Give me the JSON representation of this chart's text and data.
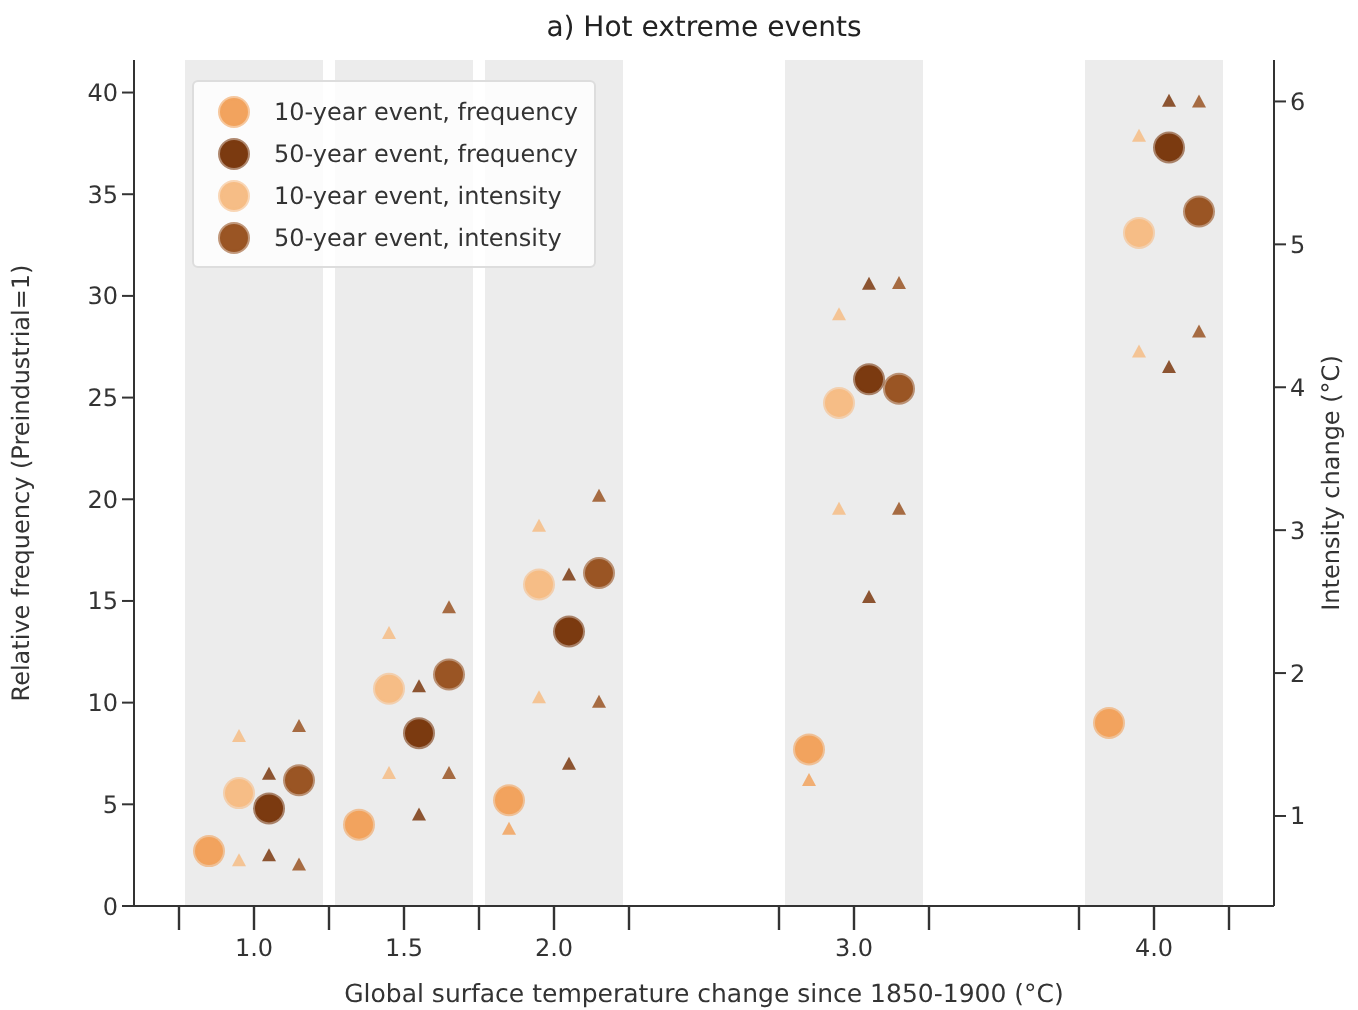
{
  "chart_data": {
    "type": "scatter",
    "title": "a) Hot extreme events",
    "xlabel": "Global surface temperature change since 1850-1900 (°C)",
    "ylabel": "Relative frequency (Preindustrial=1)",
    "y2label": "Intensity change (°C)",
    "xlim": [
      0.6,
      4.4
    ],
    "xticks": [
      {
        "value": 0.75,
        "label": null
      },
      {
        "value": 1,
        "label": "1.0"
      },
      {
        "value": 1.25,
        "label": null
      },
      {
        "value": 1.5,
        "label": "1.5"
      },
      {
        "value": 1.75,
        "label": null
      },
      {
        "value": 2,
        "label": "2.0"
      },
      {
        "value": 2.25,
        "label": null
      },
      {
        "value": 2.75,
        "label": null
      },
      {
        "value": 3,
        "label": "3.0"
      },
      {
        "value": 3.25,
        "label": null
      },
      {
        "value": 3.75,
        "label": null
      },
      {
        "value": 4,
        "label": "4.0"
      },
      {
        "value": 4.25,
        "label": null
      }
    ],
    "ylim": [
      0,
      41.6
    ],
    "yticks": [
      0,
      5,
      10,
      15,
      20,
      25,
      30,
      35,
      40
    ],
    "y2lim": [
      0.37,
      6.29
    ],
    "y2ticks": [
      1,
      2,
      3,
      4,
      5,
      6
    ],
    "bands": [
      {
        "axis": "x",
        "from": 0.77,
        "to": 1.23,
        "color": "#ececec"
      },
      {
        "axis": "x",
        "from": 1.27,
        "to": 1.73,
        "color": "#ececec"
      },
      {
        "axis": "x",
        "from": 1.77,
        "to": 2.23,
        "color": "#ececec"
      },
      {
        "axis": "x",
        "from": 2.77,
        "to": 3.23,
        "color": "#ececec"
      },
      {
        "axis": "x",
        "from": 3.77,
        "to": 4.23,
        "color": "#ececec"
      }
    ],
    "legend": "top left",
    "marker": "circle",
    "series": [
      {
        "name": "10-year event, frequency",
        "color": "#f2a35e",
        "x": [
          0.85,
          1.35,
          1.85,
          2.85,
          3.85
        ],
        "values": [
          2.7,
          4.0,
          5.2,
          7.7,
          9.0
        ]
      },
      {
        "name": "50-year event, frequency",
        "color": "#7b3a10",
        "x": [
          1.05,
          1.55,
          2.05,
          3.05,
          4.05
        ],
        "values": [
          4.8,
          8.5,
          13.5,
          25.9,
          37.3
        ]
      },
      {
        "name": "10-year event, intensity",
        "axis": "y2",
        "color": "#f6bd86",
        "x": [
          0.95,
          1.45,
          1.95,
          2.95,
          3.95
        ],
        "values": [
          1.16,
          1.89,
          2.62,
          3.89,
          5.08
        ]
      },
      {
        "name": "50-year event, intensity",
        "axis": "y2",
        "color": "#9a5524",
        "x": [
          1.15,
          1.65,
          2.15,
          3.15,
          4.15
        ],
        "values": [
          1.25,
          1.99,
          2.7,
          3.99,
          5.23
        ]
      },
      {
        "color": "#f2a35e",
        "marker": "triangle",
        "x": [
          1.85,
          2.85
        ],
        "values": [
          3.8,
          6.2
        ]
      },
      {
        "color": "#7b3a10",
        "marker": "triangle",
        "x": [
          1.05,
          1.55,
          2.05,
          3.05,
          4.05
        ],
        "values": [
          2.5,
          4.5,
          7.0,
          15.2,
          26.5
        ]
      },
      {
        "color": "#7b3a10",
        "marker": "triangle",
        "x": [
          1.05,
          1.55,
          2.05,
          3.05,
          4.05
        ],
        "values": [
          6.5,
          10.8,
          16.3,
          30.6,
          39.6
        ]
      },
      {
        "axis": "y2",
        "color": "#f6bd86",
        "marker": "triangle",
        "x": [
          0.95,
          1.45,
          1.95,
          2.95,
          3.95
        ],
        "values": [
          0.69,
          1.3,
          1.83,
          3.15,
          4.25
        ]
      },
      {
        "axis": "y2",
        "color": "#f6bd86",
        "marker": "triangle",
        "x": [
          0.95,
          1.45,
          1.95,
          2.95,
          3.95
        ],
        "values": [
          1.56,
          2.28,
          3.03,
          4.51,
          5.76
        ]
      },
      {
        "axis": "y2",
        "color": "#9a5524",
        "marker": "triangle",
        "x": [
          1.15,
          1.65,
          2.15,
          3.15,
          4.15
        ],
        "values": [
          0.66,
          1.3,
          1.8,
          3.15,
          4.39
        ]
      },
      {
        "axis": "y2",
        "color": "#9a5524",
        "marker": "triangle",
        "x": [
          1.15,
          1.65,
          2.15,
          3.15,
          4.15
        ],
        "values": [
          1.63,
          2.46,
          3.24,
          4.73,
          6.0
        ]
      }
    ]
  }
}
